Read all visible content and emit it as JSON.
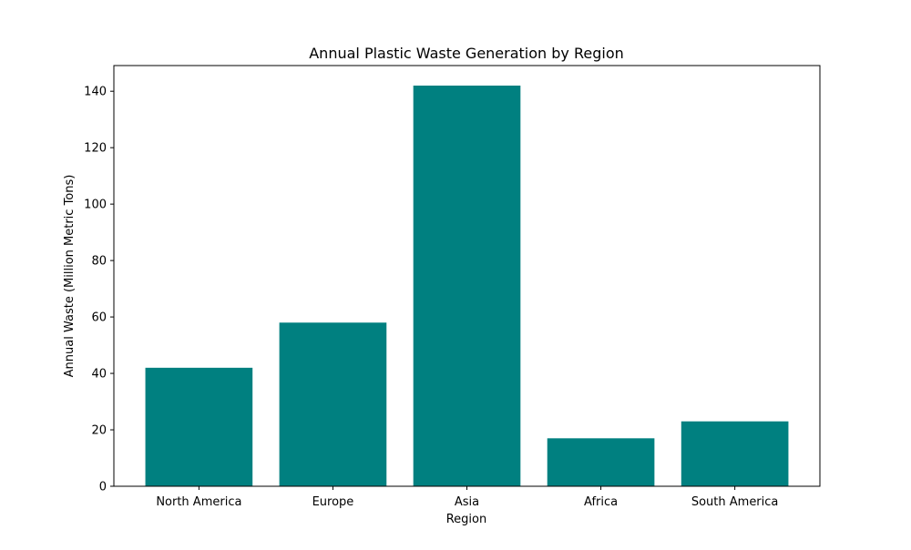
{
  "chart_data": {
    "type": "bar",
    "title": "Annual Plastic Waste Generation by Region",
    "xlabel": "Region",
    "ylabel": "Annual Waste (Million Metric Tons)",
    "categories": [
      "North America",
      "Europe",
      "Asia",
      "Africa",
      "South America"
    ],
    "values": [
      42,
      58,
      142,
      17,
      23
    ],
    "ylim": [
      0,
      149.1
    ],
    "yticks": [
      0,
      20,
      40,
      60,
      80,
      100,
      120,
      140
    ],
    "grid": false,
    "bar_color": "#008080"
  }
}
